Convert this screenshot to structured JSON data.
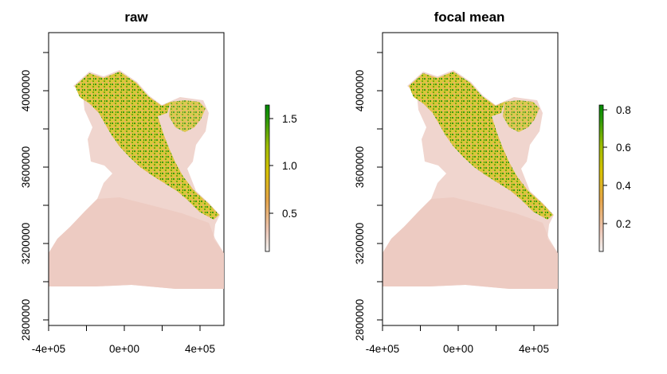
{
  "chart_data": [
    {
      "type": "heatmap",
      "title": "raw",
      "x_ticks": [
        "-4e+05",
        "0e+00",
        "4e+05"
      ],
      "x_tick_values": [
        -400000,
        0,
        400000
      ],
      "y_ticks": [
        "2800000",
        "3200000",
        "3600000",
        "4000000"
      ],
      "y_tick_values": [
        2800000,
        3200000,
        3600000,
        4000000
      ],
      "xlim": [
        -420000,
        530000
      ],
      "ylim": [
        2770000,
        4300000
      ],
      "legend": {
        "position": "right",
        "range": [
          0.01,
          1.65
        ],
        "ticks": [
          "0.5",
          "1.0",
          "1.5"
        ],
        "tick_values": [
          0.5,
          1.0,
          1.5
        ],
        "colors": [
          "#f2f2f2",
          "#eec6b4",
          "#e6a54a",
          "#d7c200",
          "#9fbd00",
          "#2c9a0a",
          "#008b00"
        ]
      }
    },
    {
      "type": "heatmap",
      "title": "focal mean",
      "x_ticks": [
        "-4e+05",
        "0e+00",
        "4e+05"
      ],
      "x_tick_values": [
        -400000,
        0,
        400000
      ],
      "y_ticks": [
        "2800000",
        "3200000",
        "3600000",
        "4000000"
      ],
      "y_tick_values": [
        2800000,
        3200000,
        3600000,
        4000000
      ],
      "xlim": [
        -420000,
        530000
      ],
      "ylim": [
        2770000,
        4300000
      ],
      "legend": {
        "position": "right",
        "range": [
          0.01,
          0.82
        ],
        "ticks": [
          "0.2",
          "0.4",
          "0.6",
          "0.8"
        ],
        "tick_values": [
          0.2,
          0.4,
          0.6,
          0.8
        ],
        "colors": [
          "#f2f2f2",
          "#eec6b4",
          "#e6a54a",
          "#d7c200",
          "#9fbd00",
          "#2c9a0a",
          "#008b00"
        ]
      }
    }
  ],
  "colors": {
    "raster_low": "#efcdc5",
    "raster_low_light": "#f3dcd6",
    "raster_mid": "#d9c400",
    "raster_high": "#2d9a0c"
  }
}
